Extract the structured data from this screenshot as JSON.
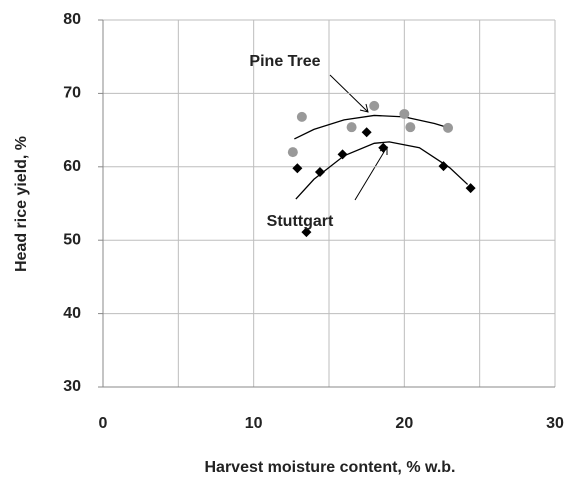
{
  "chart_data": {
    "type": "scatter",
    "x_label": "Harvest moisture content, % w.b.",
    "y_label": "Head rice yield, %",
    "xlim": [
      0,
      30
    ],
    "ylim": [
      30,
      80
    ],
    "xticks": [
      0,
      10,
      20,
      30
    ],
    "yticks": [
      30,
      40,
      50,
      60,
      70,
      80
    ],
    "x_grid": [
      5,
      10,
      15,
      20,
      25,
      30
    ],
    "grid": true,
    "series": [
      {
        "name": "Pine Tree",
        "color": "#999999",
        "marker": "circle",
        "x": [
          12.6,
          13.2,
          16.5,
          18.0,
          20.0,
          20.4,
          22.9
        ],
        "values": [
          62.0,
          66.8,
          65.4,
          68.3,
          67.2,
          65.4,
          65.3
        ],
        "trend": {
          "x": [
            12.7,
            14,
            16,
            18,
            20,
            22,
            22.8
          ],
          "values": [
            63.8,
            65.1,
            66.4,
            67.0,
            66.8,
            65.9,
            65.4
          ]
        }
      },
      {
        "name": "Stuttgart",
        "color": "#000000",
        "marker": "diamond",
        "x": [
          12.9,
          13.5,
          14.4,
          15.9,
          17.5,
          18.6,
          22.6,
          24.4
        ],
        "values": [
          59.8,
          51.1,
          59.3,
          61.7,
          64.7,
          62.6,
          60.1,
          57.1
        ],
        "trend": {
          "x": [
            12.8,
            14,
            16,
            18,
            19,
            21,
            23,
            24.2
          ],
          "values": [
            55.6,
            58.3,
            61.5,
            63.2,
            63.4,
            62.6,
            59.9,
            57.6
          ]
        }
      }
    ]
  }
}
